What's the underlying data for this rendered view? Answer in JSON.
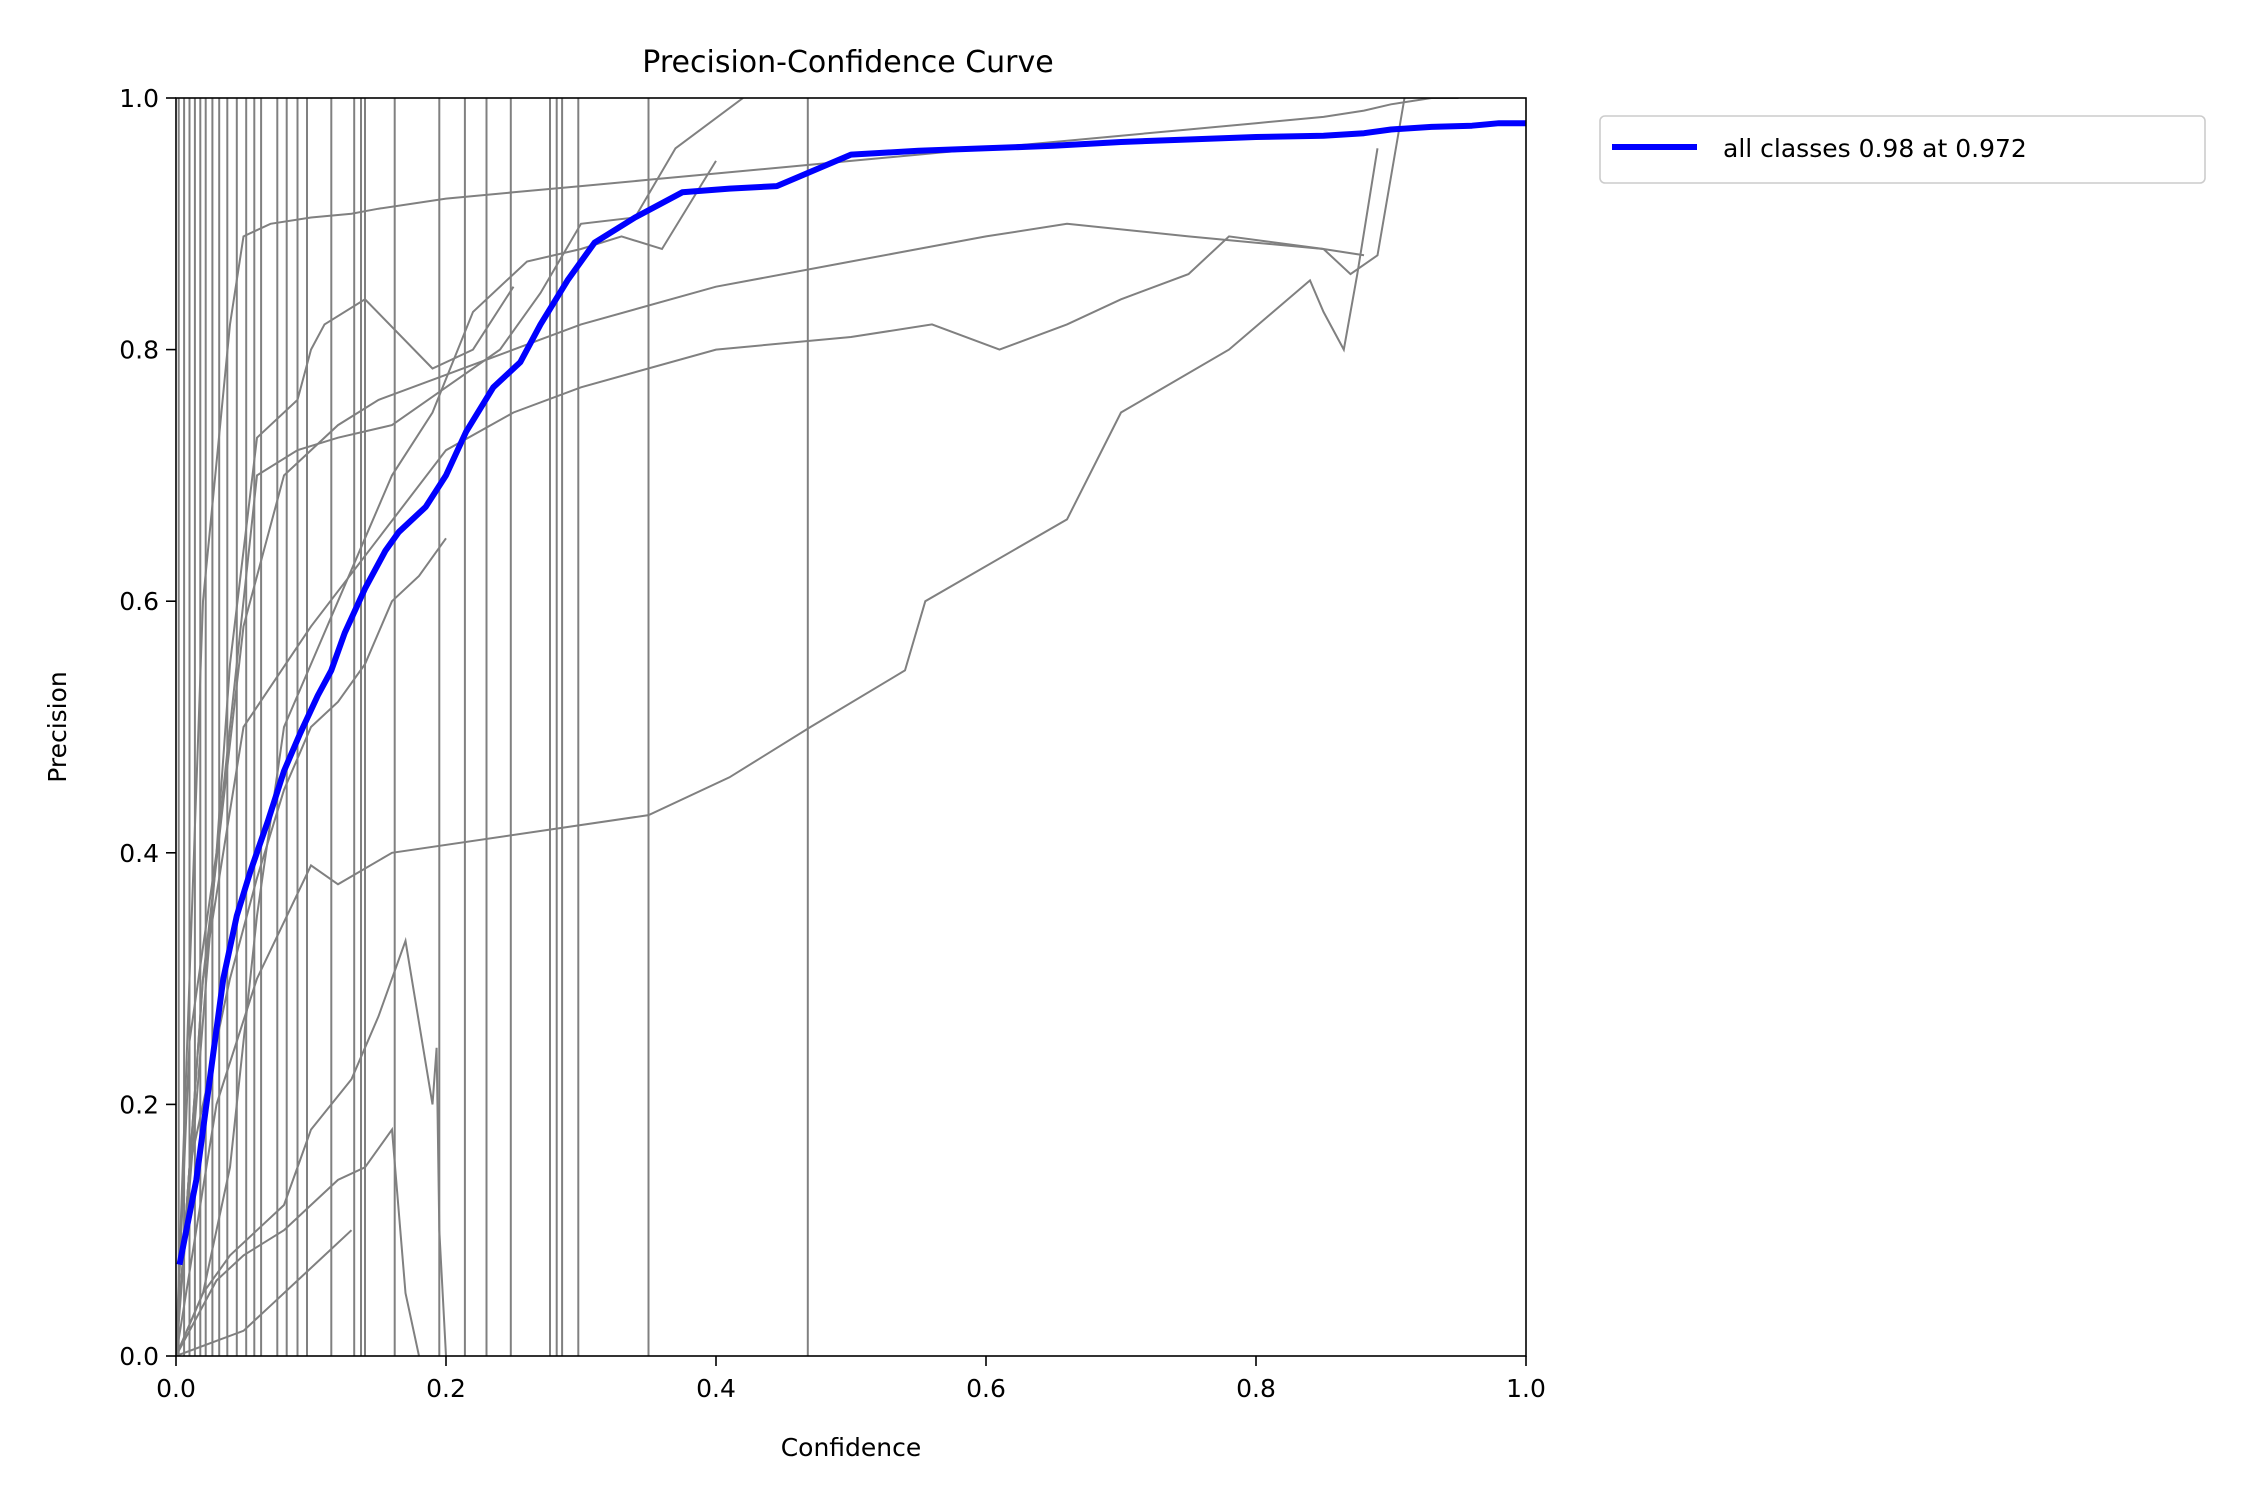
{
  "chart_data": {
    "type": "line",
    "title": "Precision-Confidence Curve",
    "xlabel": "Confidence",
    "ylabel": "Precision",
    "xlim": [
      0,
      1
    ],
    "ylim": [
      0,
      1
    ],
    "xticks": [
      "0.0",
      "0.2",
      "0.4",
      "0.6",
      "0.8",
      "1.0"
    ],
    "yticks": [
      "0.0",
      "0.2",
      "0.4",
      "0.6",
      "0.8",
      "1.0"
    ],
    "grid": false,
    "legend_position": "outside-top-right",
    "colors": {
      "class_line": "#808080",
      "all_classes": "#0000ff"
    },
    "series_all": {
      "name": "all classes 0.98 at 0.972",
      "x": [
        0.003,
        0.015,
        0.025,
        0.035,
        0.045,
        0.055,
        0.068,
        0.08,
        0.092,
        0.105,
        0.115,
        0.125,
        0.14,
        0.155,
        0.165,
        0.185,
        0.2,
        0.215,
        0.235,
        0.255,
        0.27,
        0.29,
        0.31,
        0.34,
        0.375,
        0.41,
        0.445,
        0.5,
        0.55,
        0.6,
        0.65,
        0.7,
        0.75,
        0.8,
        0.85,
        0.88,
        0.9,
        0.93,
        0.96,
        0.98,
        1.0
      ],
      "y": [
        0.075,
        0.14,
        0.22,
        0.3,
        0.35,
        0.385,
        0.425,
        0.465,
        0.495,
        0.525,
        0.545,
        0.575,
        0.61,
        0.64,
        0.655,
        0.675,
        0.7,
        0.735,
        0.77,
        0.79,
        0.82,
        0.855,
        0.885,
        0.905,
        0.925,
        0.928,
        0.93,
        0.955,
        0.958,
        0.96,
        0.962,
        0.965,
        0.967,
        0.969,
        0.97,
        0.972,
        0.975,
        0.977,
        0.978,
        0.98,
        0.98
      ]
    },
    "series_classes": [
      {
        "x": [
          0.0,
          0.02,
          0.04,
          0.05,
          0.07,
          0.1,
          0.13,
          0.14,
          0.15,
          0.2,
          0.25,
          0.3,
          0.35,
          0.4,
          0.45,
          0.5,
          0.55,
          0.6,
          0.65,
          0.7,
          0.75,
          0.8,
          0.85,
          0.88,
          0.9,
          0.93,
          0.95
        ],
        "y": [
          0.0,
          0.6,
          0.82,
          0.89,
          0.9,
          0.905,
          0.908,
          0.91,
          0.912,
          0.92,
          0.925,
          0.93,
          0.935,
          0.94,
          0.945,
          0.95,
          0.955,
          0.96,
          0.965,
          0.97,
          0.975,
          0.98,
          0.985,
          0.99,
          0.995,
          1.0,
          1.0
        ]
      },
      {
        "x": [
          0.0,
          0.03,
          0.06,
          0.09,
          0.12,
          0.16,
          0.2,
          0.24,
          0.27,
          0.3,
          0.34,
          0.37,
          0.42
        ],
        "y": [
          0.0,
          0.4,
          0.7,
          0.72,
          0.73,
          0.74,
          0.77,
          0.8,
          0.845,
          0.9,
          0.905,
          0.96,
          1.0
        ]
      },
      {
        "x": [
          0.0,
          0.02,
          0.05,
          0.08,
          0.12,
          0.15,
          0.2,
          0.25,
          0.3,
          0.4,
          0.5,
          0.6,
          0.66,
          0.75,
          0.8,
          0.85,
          0.88
        ],
        "y": [
          0.0,
          0.3,
          0.58,
          0.7,
          0.74,
          0.76,
          0.78,
          0.8,
          0.82,
          0.85,
          0.87,
          0.89,
          0.9,
          0.89,
          0.885,
          0.88,
          0.875
        ]
      },
      {
        "x": [
          0.0,
          0.02,
          0.05,
          0.1,
          0.15,
          0.2,
          0.25,
          0.3,
          0.4,
          0.5,
          0.56,
          0.61,
          0.66,
          0.7,
          0.75,
          0.78,
          0.85,
          0.87,
          0.89,
          0.91
        ],
        "y": [
          0.0,
          0.3,
          0.5,
          0.58,
          0.65,
          0.72,
          0.75,
          0.77,
          0.8,
          0.81,
          0.82,
          0.8,
          0.82,
          0.84,
          0.86,
          0.89,
          0.88,
          0.86,
          0.875,
          1.0
        ]
      },
      {
        "x": [
          0.0,
          0.03,
          0.06,
          0.1,
          0.12,
          0.16,
          0.35,
          0.41,
          0.47,
          0.54,
          0.555,
          0.66,
          0.7,
          0.78,
          0.84,
          0.85,
          0.865,
          0.875,
          0.89
        ],
        "y": [
          0.0,
          0.2,
          0.3,
          0.39,
          0.375,
          0.4,
          0.43,
          0.46,
          0.5,
          0.545,
          0.6,
          0.665,
          0.75,
          0.8,
          0.855,
          0.83,
          0.8,
          0.86,
          0.96
        ]
      },
      {
        "x": [
          0.0,
          0.02,
          0.04,
          0.06,
          0.08,
          0.1,
          0.13,
          0.15,
          0.16,
          0.17,
          0.19,
          0.193,
          0.195,
          0.2
        ],
        "y": [
          0.0,
          0.05,
          0.08,
          0.1,
          0.12,
          0.18,
          0.22,
          0.27,
          0.3,
          0.33,
          0.2,
          0.245,
          0.1,
          0.0
        ]
      },
      {
        "x": [
          0.0,
          0.03,
          0.05,
          0.08,
          0.1,
          0.12,
          0.14,
          0.16,
          0.17,
          0.18
        ],
        "y": [
          0.0,
          0.06,
          0.08,
          0.1,
          0.12,
          0.14,
          0.15,
          0.18,
          0.05,
          0.0
        ]
      },
      {
        "x": [
          0.0,
          0.02,
          0.04,
          0.06,
          0.08,
          0.1,
          0.12,
          0.14,
          0.16,
          0.19,
          0.22,
          0.26,
          0.3,
          0.33,
          0.36,
          0.4
        ],
        "y": [
          0.0,
          0.05,
          0.15,
          0.35,
          0.5,
          0.55,
          0.6,
          0.65,
          0.7,
          0.75,
          0.83,
          0.87,
          0.88,
          0.89,
          0.88,
          0.95
        ]
      },
      {
        "x": [
          0.0,
          0.01,
          0.03,
          0.04,
          0.06,
          0.08,
          0.1,
          0.12,
          0.14,
          0.16,
          0.18,
          0.2
        ],
        "y": [
          0.0,
          0.15,
          0.25,
          0.3,
          0.38,
          0.45,
          0.5,
          0.52,
          0.55,
          0.6,
          0.62,
          0.65
        ]
      },
      {
        "x": [
          0.0,
          0.01,
          0.03,
          0.04,
          0.06,
          0.09,
          0.1,
          0.11,
          0.14,
          0.19,
          0.22,
          0.25
        ],
        "y": [
          0.0,
          0.25,
          0.4,
          0.55,
          0.73,
          0.76,
          0.8,
          0.82,
          0.84,
          0.785,
          0.8,
          0.85
        ]
      },
      {
        "x": [
          0.0,
          0.05,
          0.07,
          0.09,
          0.11,
          0.13
        ],
        "y": [
          0.0,
          0.02,
          0.04,
          0.06,
          0.08,
          0.1
        ]
      }
    ],
    "vertical_lines_x": [
      0.002,
      0.006,
      0.01,
      0.014,
      0.018,
      0.022,
      0.027,
      0.032,
      0.038,
      0.045,
      0.052,
      0.058,
      0.063,
      0.075,
      0.082,
      0.09,
      0.097,
      0.115,
      0.132,
      0.137,
      0.14,
      0.162,
      0.195,
      0.214,
      0.23,
      0.248,
      0.277,
      0.282,
      0.286,
      0.298,
      0.35,
      0.468
    ]
  }
}
